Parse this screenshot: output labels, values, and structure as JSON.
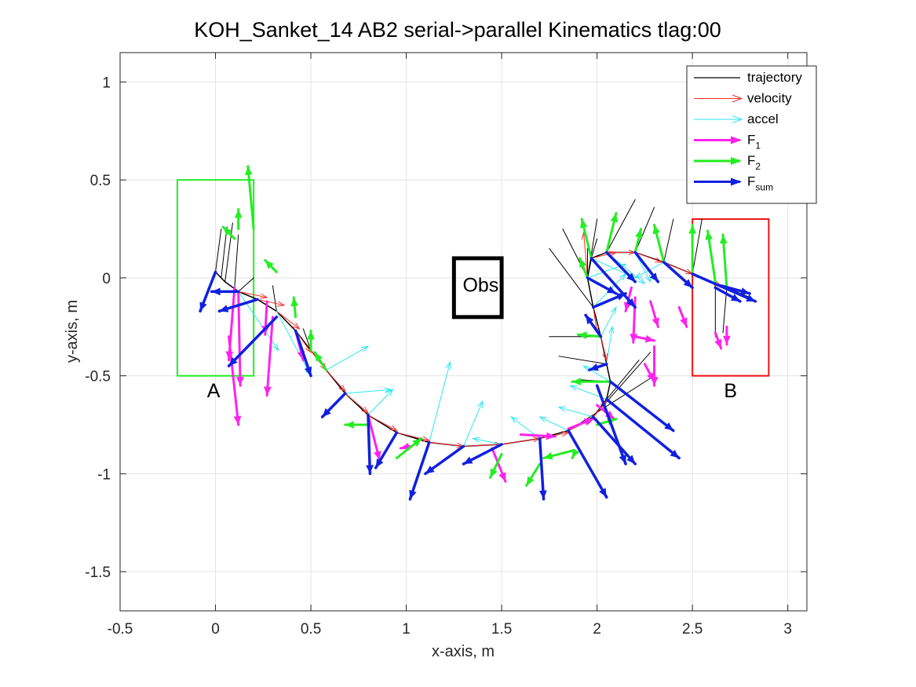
{
  "chart_data": {
    "type": "quiver",
    "title": "KOH_Sanket_14    AB2    serial->parallel    Kinematics tlag:00",
    "xlabel": "x-axis, m",
    "ylabel": "y-axis, m",
    "xlim": [
      -0.5,
      3.1
    ],
    "ylim": [
      -1.7,
      1.15
    ],
    "xticks": [
      -0.5,
      0,
      0.5,
      1,
      1.5,
      2,
      2.5,
      3
    ],
    "xtick_labels": [
      "-0.5",
      "0",
      "0.5",
      "1",
      "1.5",
      "2",
      "2.5",
      "3"
    ],
    "yticks": [
      1,
      0.5,
      0,
      -0.5,
      -1,
      -1.5
    ],
    "ytick_labels": [
      "1",
      "0.5",
      "0",
      "-0.5",
      "-1",
      "-1.5"
    ],
    "grid": true,
    "legend": {
      "position": "top-right",
      "entries": [
        {
          "name": "trajectory",
          "base": "trajectory",
          "sub": "",
          "color": "#000000",
          "width": 1.3
        },
        {
          "name": "velocity",
          "base": "velocity",
          "sub": "",
          "color": "#ff2b2b",
          "width": 1
        },
        {
          "name": "accel",
          "base": "accel",
          "sub": "",
          "color": "#2ee6f2",
          "width": 1
        },
        {
          "name": "F_1",
          "base": "F",
          "sub": "1",
          "color": "#ff22ee",
          "width": 3
        },
        {
          "name": "F_2",
          "base": "F",
          "sub": "2",
          "color": "#22ee22",
          "width": 3
        },
        {
          "name": "F_sum",
          "base": "F",
          "sub": "sum",
          "color": "#1020e0",
          "width": 3
        }
      ]
    },
    "regions": [
      {
        "label": "A",
        "x": [
          -0.2,
          0.2
        ],
        "y": [
          -0.5,
          0.5
        ],
        "color": "#22ee22",
        "label_at": [
          -0.01,
          -0.61
        ],
        "border_width": 2
      },
      {
        "label": "B",
        "x": [
          2.5,
          2.9
        ],
        "y": [
          -0.5,
          0.3
        ],
        "color": "#ee1111",
        "label_at": [
          2.7,
          -0.61
        ],
        "border_width": 2
      },
      {
        "label": "Obs",
        "x": [
          1.25,
          1.5
        ],
        "y": [
          -0.2,
          0.1
        ],
        "color": "#000000",
        "label_at": [
          1.39,
          -0.07
        ],
        "border_width": 5
      }
    ],
    "trajectory": [
      [
        0.0,
        0.03
      ],
      [
        0.05,
        -0.02
      ],
      [
        0.12,
        -0.07
      ],
      [
        0.22,
        -0.11
      ],
      [
        0.32,
        -0.17
      ],
      [
        0.42,
        -0.27
      ],
      [
        0.5,
        -0.37
      ],
      [
        0.58,
        -0.47
      ],
      [
        0.68,
        -0.59
      ],
      [
        0.8,
        -0.7
      ],
      [
        0.95,
        -0.79
      ],
      [
        1.12,
        -0.84
      ],
      [
        1.3,
        -0.86
      ],
      [
        1.5,
        -0.85
      ],
      [
        1.7,
        -0.82
      ],
      [
        1.85,
        -0.78
      ],
      [
        1.98,
        -0.71
      ],
      [
        2.05,
        -0.62
      ],
      [
        2.07,
        -0.53
      ],
      [
        2.05,
        -0.44
      ],
      [
        2.02,
        -0.3
      ],
      [
        1.98,
        -0.15
      ],
      [
        1.95,
        0.0
      ],
      [
        1.97,
        0.1
      ],
      [
        2.05,
        0.13
      ],
      [
        2.2,
        0.13
      ],
      [
        2.35,
        0.08
      ],
      [
        2.5,
        0.02
      ],
      [
        2.65,
        -0.04
      ],
      [
        2.8,
        -0.1
      ]
    ],
    "series": [
      {
        "name": "trajectory",
        "color": "#000000",
        "width": 1,
        "head": false,
        "segments": [
          [
            0.0,
            0.03,
            0.03,
            0.25
          ],
          [
            0.03,
            0.0,
            0.06,
            0.26
          ],
          [
            0.05,
            -0.02,
            0.09,
            0.28
          ],
          [
            0.1,
            -0.05,
            0.12,
            0.22
          ],
          [
            0.12,
            -0.07,
            0.2,
            0.0
          ],
          [
            0.32,
            -0.17,
            0.3,
            -0.04
          ],
          [
            0.5,
            -0.37,
            0.46,
            -0.26
          ],
          [
            1.95,
            0.0,
            1.95,
            0.15
          ],
          [
            1.97,
            0.1,
            2.0,
            0.2
          ],
          [
            2.05,
            0.13,
            2.2,
            0.4
          ],
          [
            2.2,
            0.13,
            2.3,
            0.36
          ],
          [
            2.35,
            0.08,
            2.4,
            0.3
          ],
          [
            2.5,
            0.02,
            2.55,
            0.3
          ],
          [
            2.02,
            -0.3,
            1.75,
            -0.3
          ],
          [
            2.05,
            -0.44,
            1.8,
            -0.4
          ],
          [
            2.07,
            -0.53,
            1.9,
            -0.52
          ],
          [
            1.98,
            -0.15,
            1.75,
            0.15
          ],
          [
            1.95,
            0.0,
            1.82,
            0.25
          ],
          [
            2.05,
            -0.62,
            2.22,
            -0.42
          ],
          [
            1.98,
            -0.71,
            2.28,
            -0.38
          ],
          [
            1.85,
            -0.78,
            2.3,
            -0.5
          ],
          [
            1.95,
            0.0,
            2.0,
            0.3
          ],
          [
            2.62,
            -0.02,
            2.62,
            -0.3
          ],
          [
            2.68,
            -0.05,
            2.66,
            -0.28
          ]
        ]
      },
      {
        "name": "velocity",
        "color": "#ff2b2b",
        "width": 1,
        "head": true,
        "segments": [
          [
            0.12,
            -0.07,
            0.27,
            -0.1
          ],
          [
            0.22,
            -0.11,
            0.36,
            -0.14
          ],
          [
            0.32,
            -0.17,
            0.44,
            -0.26
          ],
          [
            0.42,
            -0.27,
            0.5,
            -0.38
          ],
          [
            0.5,
            -0.37,
            0.58,
            -0.47
          ],
          [
            0.58,
            -0.47,
            0.68,
            -0.58
          ],
          [
            0.68,
            -0.59,
            0.8,
            -0.69
          ],
          [
            0.8,
            -0.7,
            0.95,
            -0.78
          ],
          [
            0.95,
            -0.79,
            1.12,
            -0.83
          ],
          [
            1.12,
            -0.84,
            1.3,
            -0.86
          ],
          [
            1.3,
            -0.86,
            1.5,
            -0.85
          ],
          [
            1.5,
            -0.85,
            1.7,
            -0.82
          ],
          [
            1.7,
            -0.82,
            1.85,
            -0.79
          ],
          [
            1.85,
            -0.78,
            1.98,
            -0.72
          ],
          [
            1.98,
            -0.71,
            2.05,
            -0.63
          ],
          [
            2.02,
            -0.3,
            2.05,
            -0.42
          ],
          [
            1.98,
            -0.15,
            2.0,
            -0.28
          ],
          [
            1.95,
            0.0,
            1.93,
            0.23
          ],
          [
            1.97,
            0.1,
            2.1,
            0.13
          ],
          [
            2.05,
            0.13,
            2.2,
            0.13
          ],
          [
            2.2,
            0.13,
            2.34,
            0.08
          ],
          [
            2.35,
            0.08,
            2.5,
            0.02
          ],
          [
            2.5,
            0.02,
            2.65,
            -0.04
          ]
        ]
      },
      {
        "name": "accel",
        "color": "#2ee6f2",
        "width": 1,
        "head": true,
        "segments": [
          [
            0.12,
            -0.07,
            0.33,
            -0.37
          ],
          [
            0.32,
            -0.17,
            0.5,
            -0.5
          ],
          [
            0.58,
            -0.47,
            0.8,
            -0.35
          ],
          [
            0.68,
            -0.59,
            0.92,
            -0.57
          ],
          [
            0.8,
            -0.7,
            0.93,
            -0.57
          ],
          [
            1.12,
            -0.84,
            1.23,
            -0.43
          ],
          [
            1.3,
            -0.86,
            1.4,
            -0.63
          ],
          [
            1.5,
            -0.85,
            1.35,
            -0.82
          ],
          [
            1.7,
            -0.82,
            1.55,
            -0.71
          ],
          [
            1.85,
            -0.78,
            1.7,
            -0.71
          ],
          [
            1.98,
            -0.71,
            1.8,
            -0.66
          ],
          [
            2.05,
            -0.62,
            1.86,
            -0.55
          ],
          [
            2.07,
            -0.53,
            1.93,
            -0.45
          ],
          [
            2.05,
            -0.44,
            2.08,
            -0.25
          ],
          [
            2.02,
            -0.3,
            2.1,
            -0.15
          ],
          [
            1.98,
            -0.15,
            2.15,
            0.02
          ],
          [
            1.95,
            0.0,
            2.15,
            0.07
          ],
          [
            1.97,
            0.1,
            2.2,
            0.0
          ],
          [
            2.05,
            0.13,
            2.25,
            -0.03
          ],
          [
            2.2,
            0.13,
            2.28,
            -0.02
          ],
          [
            2.35,
            0.08,
            2.2,
            0.0
          ]
        ]
      },
      {
        "name": "F_1",
        "color": "#ff22ee",
        "width": 3,
        "head": true,
        "segments": [
          [
            0.1,
            -0.05,
            0.07,
            -0.42
          ],
          [
            0.12,
            -0.07,
            0.13,
            -0.55
          ],
          [
            0.27,
            -0.12,
            0.26,
            -0.29
          ],
          [
            0.3,
            -0.2,
            0.27,
            -0.6
          ],
          [
            0.07,
            -0.3,
            0.12,
            -0.75
          ],
          [
            0.42,
            -0.27,
            0.46,
            -0.42
          ],
          [
            0.8,
            -0.7,
            0.86,
            -0.93
          ],
          [
            1.02,
            -0.86,
            0.97,
            -0.87
          ],
          [
            1.45,
            -0.87,
            1.52,
            -1.04
          ],
          [
            1.6,
            -0.8,
            1.78,
            -0.81
          ],
          [
            1.85,
            -0.77,
            1.98,
            -0.72
          ],
          [
            2.0,
            -0.65,
            2.09,
            -0.72
          ],
          [
            2.2,
            -0.3,
            2.3,
            -0.32
          ],
          [
            2.25,
            -0.44,
            2.3,
            -0.53
          ],
          [
            2.18,
            -0.05,
            2.15,
            -0.17
          ],
          [
            2.28,
            -0.12,
            2.32,
            -0.25
          ],
          [
            2.43,
            -0.15,
            2.47,
            -0.25
          ],
          [
            2.62,
            -0.28,
            2.65,
            -0.36
          ],
          [
            2.68,
            -0.25,
            2.68,
            -0.34
          ],
          [
            2.3,
            -0.35,
            2.3,
            -0.55
          ],
          [
            2.2,
            -0.1,
            2.19,
            -0.33
          ]
        ]
      },
      {
        "name": "F_2",
        "color": "#22ee22",
        "width": 3,
        "head": true,
        "segments": [
          [
            0.1,
            0.2,
            0.04,
            0.26
          ],
          [
            0.12,
            0.25,
            0.12,
            0.35
          ],
          [
            0.2,
            0.25,
            0.17,
            0.57
          ],
          [
            0.32,
            0.03,
            0.26,
            0.09
          ],
          [
            0.42,
            -0.2,
            0.41,
            -0.1
          ],
          [
            0.5,
            -0.37,
            0.5,
            -0.27
          ],
          [
            0.58,
            -0.47,
            0.52,
            -0.38
          ],
          [
            0.8,
            -0.75,
            0.68,
            -0.75
          ],
          [
            0.95,
            -0.92,
            1.08,
            -0.82
          ],
          [
            1.5,
            -0.9,
            1.44,
            -1.02
          ],
          [
            1.7,
            -0.95,
            1.63,
            -1.06
          ],
          [
            1.88,
            -0.9,
            1.87,
            -0.92
          ],
          [
            1.88,
            -0.88,
            1.72,
            -0.92
          ],
          [
            2.0,
            -0.75,
            2.1,
            -0.72
          ],
          [
            2.07,
            -0.53,
            1.87,
            -0.53
          ],
          [
            2.02,
            -0.3,
            1.9,
            -0.29
          ],
          [
            1.95,
            0.0,
            1.91,
            0.1
          ],
          [
            1.97,
            0.1,
            1.92,
            0.3
          ],
          [
            2.05,
            0.13,
            2.1,
            0.33
          ],
          [
            2.2,
            0.13,
            2.23,
            0.25
          ],
          [
            2.35,
            0.08,
            2.3,
            0.27
          ],
          [
            2.5,
            0.02,
            2.5,
            0.27
          ],
          [
            2.62,
            -0.02,
            2.58,
            0.24
          ],
          [
            2.68,
            -0.05,
            2.66,
            0.22
          ]
        ]
      },
      {
        "name": "F_sum",
        "color": "#1020e0",
        "width": 3.5,
        "head": true,
        "segments": [
          [
            0.0,
            0.03,
            -0.08,
            -0.17
          ],
          [
            0.12,
            -0.07,
            -0.02,
            -0.07
          ],
          [
            0.22,
            -0.11,
            0.02,
            -0.17
          ],
          [
            0.32,
            -0.2,
            0.07,
            -0.45
          ],
          [
            0.42,
            -0.27,
            0.5,
            -0.5
          ],
          [
            0.68,
            -0.59,
            0.56,
            -0.71
          ],
          [
            0.8,
            -0.7,
            0.81,
            -1.0
          ],
          [
            0.95,
            -0.79,
            0.84,
            -0.97
          ],
          [
            1.12,
            -0.84,
            1.02,
            -1.13
          ],
          [
            1.3,
            -0.86,
            1.1,
            -1.0
          ],
          [
            1.5,
            -0.85,
            1.3,
            -0.95
          ],
          [
            1.7,
            -0.82,
            1.72,
            -1.13
          ],
          [
            1.85,
            -0.78,
            2.05,
            -1.12
          ],
          [
            1.98,
            -0.71,
            2.2,
            -0.95
          ],
          [
            2.05,
            -0.62,
            2.43,
            -0.92
          ],
          [
            2.07,
            -0.53,
            2.4,
            -0.78
          ],
          [
            2.05,
            -0.44,
            1.96,
            -0.47
          ],
          [
            2.02,
            -0.3,
            1.94,
            -0.19
          ],
          [
            1.98,
            -0.15,
            2.15,
            -0.08
          ],
          [
            1.95,
            0.0,
            2.1,
            -0.08
          ],
          [
            1.97,
            0.1,
            2.2,
            -0.15
          ],
          [
            2.05,
            0.13,
            2.2,
            -0.02
          ],
          [
            2.2,
            0.13,
            2.32,
            -0.02
          ],
          [
            2.35,
            0.08,
            2.5,
            -0.05
          ],
          [
            2.5,
            0.02,
            2.83,
            -0.12
          ],
          [
            2.65,
            -0.04,
            2.8,
            -0.08
          ],
          [
            2.62,
            -0.05,
            2.75,
            -0.12
          ],
          [
            2.0,
            -0.55,
            2.15,
            -0.95
          ]
        ]
      }
    ]
  }
}
